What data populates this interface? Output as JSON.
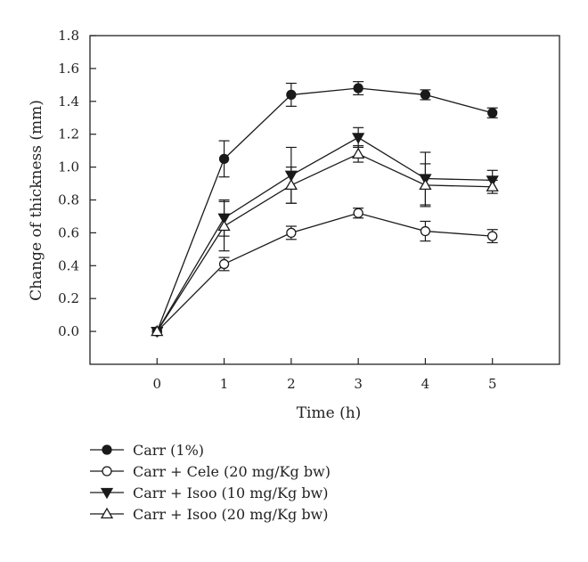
{
  "chart_data": {
    "type": "line",
    "title": "",
    "xlabel": "Time (h)",
    "ylabel": "Change of thickness (mm)",
    "x": [
      0,
      1,
      2,
      3,
      4,
      5
    ],
    "xlim": [
      -1,
      6
    ],
    "ylim": [
      -0.2,
      1.8
    ],
    "x_ticks": [
      "0",
      "1",
      "2",
      "3",
      "4",
      "5"
    ],
    "y_ticks": [
      "0.0",
      "0.2",
      "0.4",
      "0.6",
      "0.8",
      "1.0",
      "1.2",
      "1.4",
      "1.6",
      "1.8"
    ],
    "grid": false,
    "legend_position": "below",
    "series": [
      {
        "name": "Carr (1%)",
        "marker": "filled-circle",
        "values": [
          0.0,
          1.05,
          1.44,
          1.48,
          1.44,
          1.33
        ],
        "errors": [
          0.0,
          0.11,
          0.07,
          0.04,
          0.03,
          0.03
        ]
      },
      {
        "name": "Carr + Cele (20 mg/Kg bw)",
        "marker": "open-circle",
        "values": [
          0.0,
          0.41,
          0.6,
          0.72,
          0.61,
          0.58
        ],
        "errors": [
          0.0,
          0.04,
          0.04,
          0.03,
          0.06,
          0.04
        ]
      },
      {
        "name": "Carr + Isoo (10 mg/Kg bw)",
        "marker": "filled-triangle-down",
        "values": [
          0.0,
          0.69,
          0.95,
          1.18,
          0.93,
          0.92
        ],
        "errors": [
          0.0,
          0.11,
          0.17,
          0.06,
          0.16,
          0.06
        ]
      },
      {
        "name": "Carr + Isoo (20 mg/Kg bw)",
        "marker": "open-triangle-up",
        "values": [
          0.0,
          0.64,
          0.89,
          1.08,
          0.89,
          0.88
        ],
        "errors": [
          0.0,
          0.15,
          0.11,
          0.05,
          0.13,
          0.04
        ]
      }
    ]
  }
}
